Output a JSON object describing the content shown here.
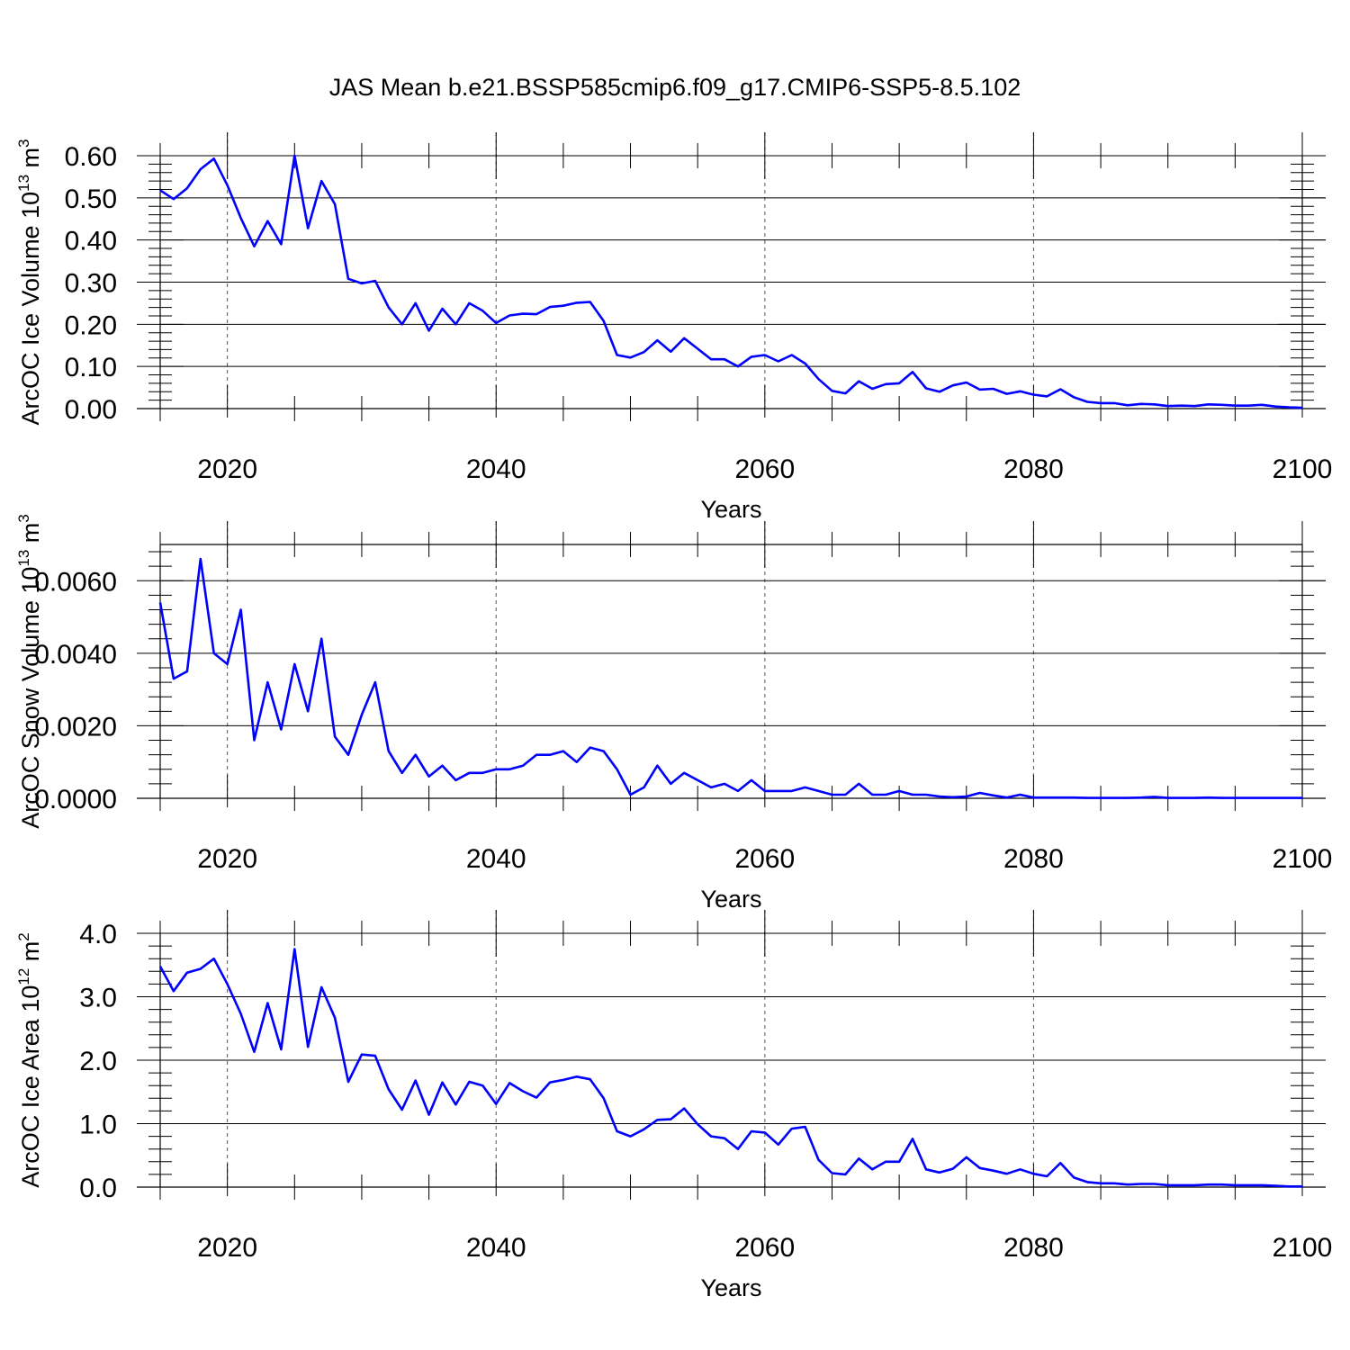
{
  "chart_data": {
    "title": "JAS Mean b.e21.BSSP585cmip6.f09_g17.CMIP6-SSP5-8.5.102",
    "panels": [
      {
        "type": "line",
        "ylabel": {
          "text": "ArcOC Ice Volume 10",
          "exp": "13",
          "unit": " m",
          "unit_exp": "3"
        },
        "xlabel": "Years",
        "xlim": [
          2015,
          2100
        ],
        "ylim": [
          0,
          0.6
        ],
        "yticks": [
          0,
          0.1,
          0.2,
          0.3,
          0.4,
          0.5,
          0.6
        ],
        "yticklabels": [
          "0.00",
          "0.10",
          "0.20",
          "0.30",
          "0.40",
          "0.50",
          "0.60"
        ],
        "xticks": [
          2020,
          2040,
          2060,
          2080,
          2100
        ],
        "xticklabels": [
          "2020",
          "2040",
          "2060",
          "2080",
          "2100"
        ],
        "x_start": 2015,
        "color": "#0000ff",
        "values": [
          0.518,
          0.497,
          0.523,
          0.568,
          0.593,
          0.53,
          0.452,
          0.385,
          0.445,
          0.39,
          0.6,
          0.428,
          0.54,
          0.485,
          0.308,
          0.297,
          0.303,
          0.24,
          0.2,
          0.25,
          0.185,
          0.237,
          0.2,
          0.25,
          0.232,
          0.203,
          0.221,
          0.225,
          0.224,
          0.241,
          0.244,
          0.251,
          0.253,
          0.208,
          0.127,
          0.121,
          0.134,
          0.162,
          0.135,
          0.167,
          0.142,
          0.117,
          0.117,
          0.1,
          0.123,
          0.127,
          0.112,
          0.127,
          0.107,
          0.07,
          0.042,
          0.036,
          0.065,
          0.047,
          0.058,
          0.06,
          0.087,
          0.048,
          0.04,
          0.055,
          0.062,
          0.045,
          0.047,
          0.035,
          0.041,
          0.033,
          0.029,
          0.046,
          0.027,
          0.016,
          0.013,
          0.013,
          0.008,
          0.011,
          0.01,
          0.006,
          0.007,
          0.006,
          0.01,
          0.009,
          0.007,
          0.007,
          0.009,
          0.005,
          0.003,
          0.002
        ]
      },
      {
        "type": "line",
        "ylabel": {
          "text": "ArcOC Snow Volume 10",
          "exp": "13",
          "unit": " m",
          "unit_exp": "3"
        },
        "xlabel": "Years",
        "xlim": [
          2015,
          2100
        ],
        "ylim": [
          0,
          0.007
        ],
        "yticks": [
          0,
          0.002,
          0.004,
          0.006
        ],
        "yticklabels": [
          "0.0000",
          "0.0020",
          "0.0040",
          "0.0060"
        ],
        "xticks": [
          2020,
          2040,
          2060,
          2080,
          2100
        ],
        "xticklabels": [
          "2020",
          "2040",
          "2060",
          "2080",
          "2100"
        ],
        "x_start": 2015,
        "color": "#0000ff",
        "values": [
          0.0054,
          0.0033,
          0.0035,
          0.0066,
          0.004,
          0.0037,
          0.0052,
          0.0016,
          0.0032,
          0.0019,
          0.0037,
          0.0024,
          0.0044,
          0.0017,
          0.0012,
          0.0023,
          0.0032,
          0.0013,
          0.0007,
          0.0012,
          0.0006,
          0.0009,
          0.0005,
          0.0007,
          0.0007,
          0.0008,
          0.0008,
          0.0009,
          0.0012,
          0.0012,
          0.0013,
          0.001,
          0.0014,
          0.0013,
          0.0008,
          0.0001,
          0.0003,
          0.0009,
          0.0004,
          0.0007,
          0.0005,
          0.0003,
          0.0004,
          0.0002,
          0.0005,
          0.0002,
          0.0002,
          0.0002,
          0.0003,
          0.0002,
          0.0001,
          0.0001,
          0.0004,
          0.0001,
          0.0001,
          0.0002,
          0.0001,
          0.0001,
          5e-05,
          3e-05,
          5e-05,
          0.00015,
          8e-05,
          2e-05,
          0.0001,
          2e-05,
          2e-05,
          2e-05,
          2e-05,
          1e-05,
          1e-05,
          1e-05,
          1e-05,
          2e-05,
          4e-05,
          1e-05,
          1e-05,
          1e-05,
          2e-05,
          1e-05,
          1e-05,
          1e-05,
          1e-05,
          1e-05,
          1e-05,
          1e-05
        ]
      },
      {
        "type": "line",
        "ylabel": {
          "text": "ArcOC Ice Area 10",
          "exp": "12",
          "unit": " m",
          "unit_exp": "2"
        },
        "xlabel": "Years",
        "xlim": [
          2015,
          2100
        ],
        "ylim": [
          0,
          4
        ],
        "yticks": [
          0,
          1,
          2,
          3,
          4
        ],
        "yticklabels": [
          "0.0",
          "1.0",
          "2.0",
          "3.0",
          "4.0"
        ],
        "xticks": [
          2020,
          2040,
          2060,
          2080,
          2100
        ],
        "xticklabels": [
          "2020",
          "2040",
          "2060",
          "2080",
          "2100"
        ],
        "x_start": 2015,
        "color": "#0000ff",
        "values": [
          3.48,
          3.09,
          3.38,
          3.44,
          3.6,
          3.2,
          2.73,
          2.13,
          2.9,
          2.17,
          3.75,
          2.21,
          3.15,
          2.67,
          1.66,
          2.09,
          2.07,
          1.54,
          1.22,
          1.68,
          1.14,
          1.65,
          1.3,
          1.66,
          1.6,
          1.31,
          1.64,
          1.51,
          1.41,
          1.65,
          1.69,
          1.74,
          1.7,
          1.4,
          0.88,
          0.8,
          0.91,
          1.06,
          1.07,
          1.24,
          0.99,
          0.8,
          0.77,
          0.6,
          0.88,
          0.86,
          0.67,
          0.92,
          0.95,
          0.43,
          0.22,
          0.2,
          0.45,
          0.28,
          0.4,
          0.4,
          0.76,
          0.28,
          0.23,
          0.29,
          0.47,
          0.3,
          0.26,
          0.21,
          0.28,
          0.21,
          0.17,
          0.38,
          0.15,
          0.08,
          0.06,
          0.06,
          0.04,
          0.05,
          0.05,
          0.03,
          0.03,
          0.03,
          0.04,
          0.04,
          0.03,
          0.03,
          0.03,
          0.02,
          0.01,
          0.01
        ]
      }
    ]
  }
}
